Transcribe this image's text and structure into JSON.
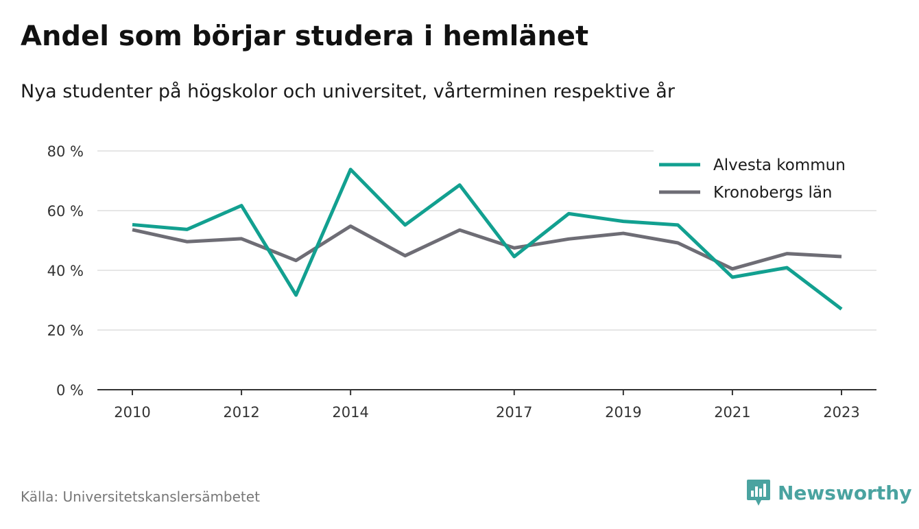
{
  "header": {
    "title": "Andel som börjar studera i hemlänet",
    "subtitle": "Nya studenter på högskolor och universitet, vårterminen respektive år"
  },
  "footer": {
    "source": "Källa: Universitetskanslersämbetet",
    "brand": "Newsworthy",
    "brand_color": "#4aa3a0"
  },
  "chart_data": {
    "type": "line",
    "title": "Andel som börjar studera i hemlänet",
    "subtitle": "Nya studenter på högskolor och universitet, vårterminen respektive år",
    "xlabel": "",
    "ylabel": "",
    "x": [
      2010,
      2011,
      2012,
      2013,
      2014,
      2015,
      2016,
      2017,
      2018,
      2019,
      2020,
      2021,
      2022,
      2023
    ],
    "x_tick_labels": [
      "2010",
      "2012",
      "2014",
      "2017",
      "2019",
      "2021",
      "2023"
    ],
    "y_ticks": [
      0,
      20,
      40,
      60,
      80
    ],
    "y_tick_labels": [
      "0 %",
      "20 %",
      "40 %",
      "60 %",
      "80 %"
    ],
    "ylim": [
      0,
      80
    ],
    "grid": true,
    "legend_position": "top-right",
    "series": [
      {
        "name": "Alvesta kommun",
        "color": "#12a090",
        "values": [
          55.3,
          53.7,
          61.7,
          31.7,
          73.8,
          55.2,
          68.6,
          44.6,
          59.0,
          56.4,
          55.2,
          37.7,
          40.9,
          27.0
        ]
      },
      {
        "name": "Kronobergs län",
        "color": "#6e6d75",
        "values": [
          53.6,
          49.6,
          50.6,
          43.3,
          54.8,
          44.9,
          53.5,
          47.5,
          50.5,
          52.4,
          49.2,
          40.5,
          45.6,
          44.6
        ]
      }
    ]
  }
}
